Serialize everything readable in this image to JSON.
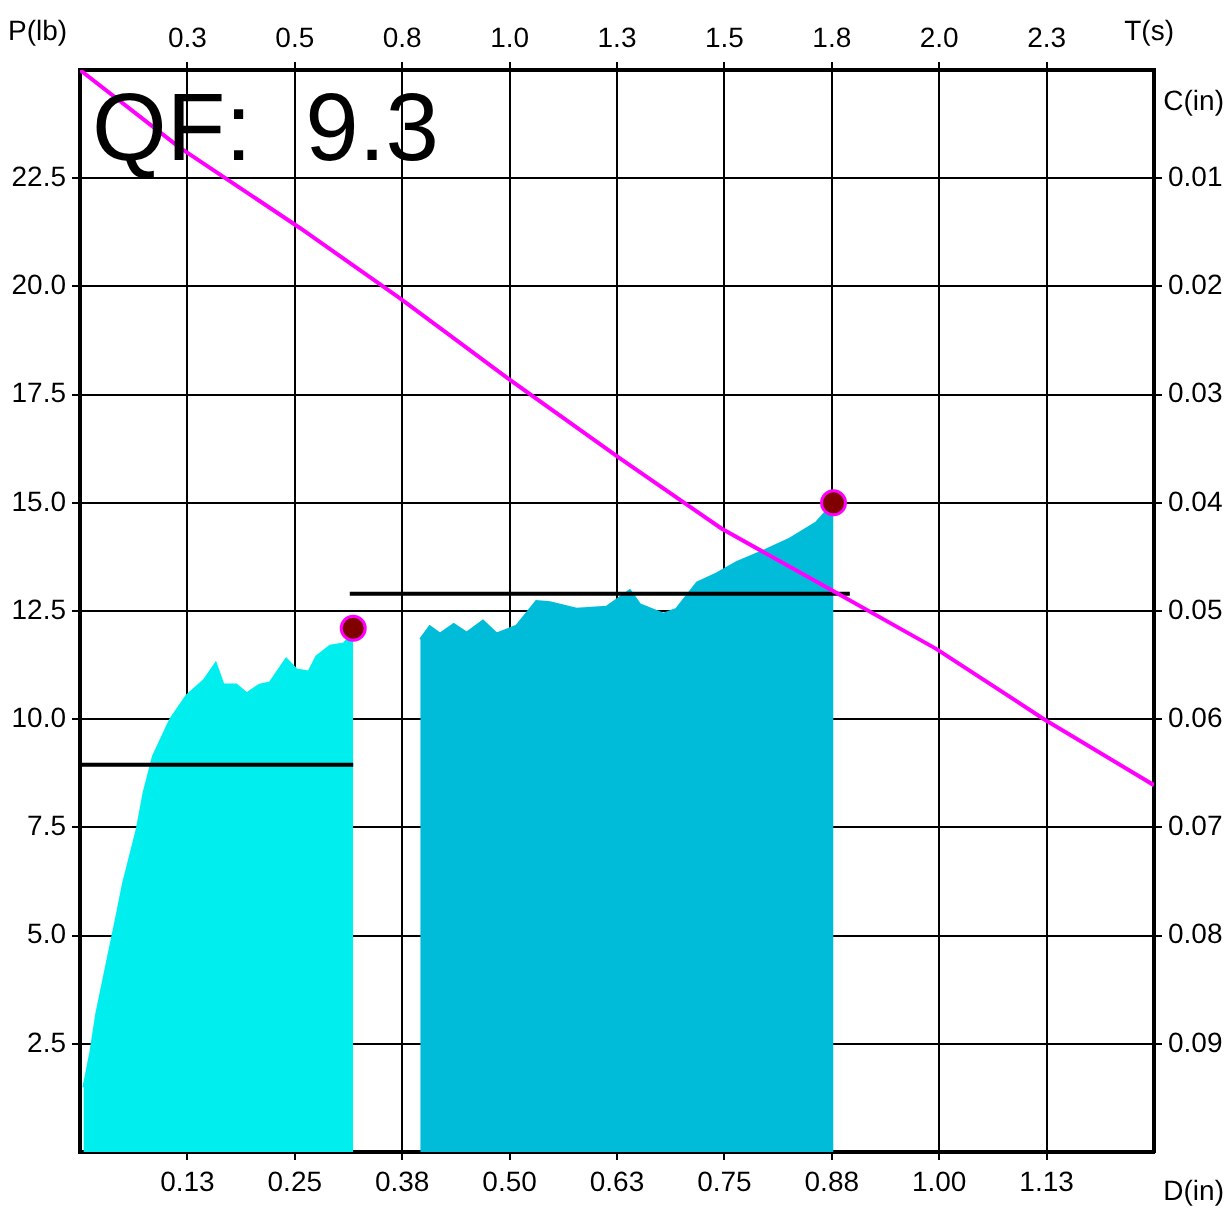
{
  "chart_data": {
    "type": "area",
    "annotations": [
      "QF:  9.3"
    ],
    "xlabel": "D(in)",
    "ylabel": "P(lb)",
    "x2label": "T(s)",
    "y2label": "C(in)",
    "xlim": [
      0,
      1.25
    ],
    "xticks": [
      {
        "value": 0.125,
        "label": "0.13"
      },
      {
        "value": 0.25,
        "label": "0.25"
      },
      {
        "value": 0.375,
        "label": "0.38"
      },
      {
        "value": 0.5,
        "label": "0.50"
      },
      {
        "value": 0.625,
        "label": "0.63"
      },
      {
        "value": 0.75,
        "label": "0.75"
      },
      {
        "value": 0.875,
        "label": "0.88"
      },
      {
        "value": 1,
        "label": "1.00"
      },
      {
        "value": 1.125,
        "label": "1.13"
      }
    ],
    "x2lim": [
      0,
      2.5
    ],
    "x2ticks": [
      {
        "value": 0.25,
        "label": "0.3"
      },
      0.5,
      {
        "value": 0.75,
        "label": "0.8"
      },
      {
        "value": 1,
        "label": "1.0"
      },
      {
        "value": 1.25,
        "label": "1.3"
      },
      1.5,
      {
        "value": 1.75,
        "label": "1.8"
      },
      {
        "value": 2,
        "label": "2.0"
      },
      {
        "value": 2.25,
        "label": "2.3"
      }
    ],
    "ylim": [
      0,
      25
    ],
    "yticks": [
      2.5,
      {
        "value": 5,
        "label": "5.0"
      },
      7.5,
      {
        "value": 10,
        "label": "10.0"
      },
      12.5,
      {
        "value": 15,
        "label": "15.0"
      },
      17.5,
      {
        "value": 20,
        "label": "20.0"
      },
      22.5
    ],
    "y2lim": [
      0.1,
      0
    ],
    "y2ticks": [
      0.01,
      0.02,
      0.03,
      0.04,
      0.05,
      0.06,
      0.07,
      0.08,
      0.09
    ],
    "grid": true,
    "series": [
      {
        "color": "#00eeee",
        "x": [
          0.004,
          0.012,
          0.019,
          0.031,
          0.043,
          0.05,
          0.066,
          0.074,
          0.085,
          0.105,
          0.124,
          0.144,
          0.158,
          0.167,
          0.182,
          0.194,
          0.209,
          0.221,
          0.24,
          0.252,
          0.266,
          0.275,
          0.291,
          0.307,
          0.318
        ],
        "values": [
          1.5,
          2.3,
          3.2,
          4.35,
          5.5,
          6.2,
          7.45,
          8.3,
          9.15,
          10.0,
          10.55,
          10.9,
          11.3,
          10.8,
          10.8,
          10.6,
          10.8,
          10.85,
          11.4,
          11.15,
          11.1,
          11.45,
          11.7,
          11.75,
          12.0
        ]
      },
      {
        "color": "#00bcd8",
        "x": [
          0.396,
          0.407,
          0.419,
          0.435,
          0.45,
          0.469,
          0.485,
          0.508,
          0.531,
          0.547,
          0.578,
          0.613,
          0.64,
          0.652,
          0.679,
          0.694,
          0.718,
          0.741,
          0.764,
          0.795,
          0.826,
          0.857,
          0.877
        ],
        "values": [
          11.85,
          12.15,
          11.98,
          12.2,
          12.0,
          12.28,
          11.98,
          12.16,
          12.73,
          12.7,
          12.55,
          12.6,
          12.98,
          12.65,
          12.44,
          12.55,
          13.16,
          13.37,
          13.63,
          13.89,
          14.17,
          14.55,
          15.0
        ]
      },
      {
        "type": "line",
        "color": "#000000",
        "x": [
          0,
          0.318
        ],
        "values": [
          8.95,
          8.95
        ]
      },
      {
        "type": "line",
        "color": "#000000",
        "x": [
          0.314,
          0.896
        ],
        "values": [
          12.9,
          12.9
        ]
      },
      {
        "type": "line",
        "color": "#ff00ff",
        "axis": "y2",
        "x": [
          0,
          0.1165,
          0.256,
          0.3725,
          0.498,
          0.6285,
          0.747,
          0.873,
          0.9965,
          1.122,
          1.25
        ],
        "values": [
          0,
          0.0072,
          0.0146,
          0.0211,
          0.0285,
          0.0359,
          0.0424,
          0.048,
          0.0535,
          0.06,
          0.0661
        ]
      },
      {
        "type": "scatter",
        "color": "#800000",
        "marker": "circle",
        "x": [
          0.318,
          0.877
        ],
        "values": [
          12.1,
          15.0
        ]
      }
    ]
  }
}
